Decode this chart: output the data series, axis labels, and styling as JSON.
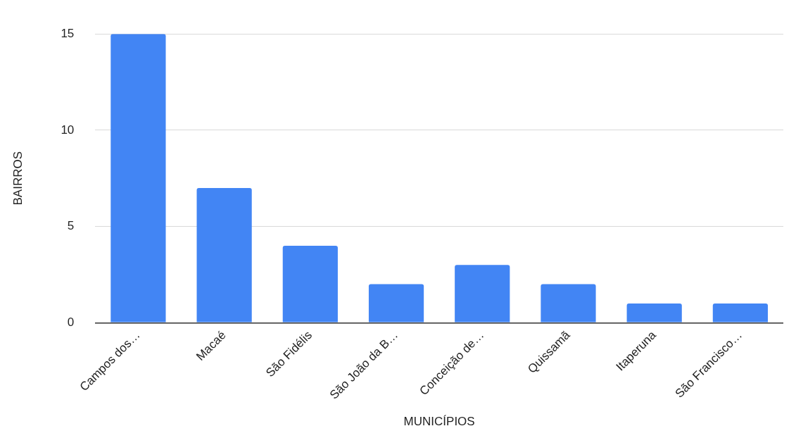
{
  "chart_data": {
    "type": "bar",
    "xlabel": "MUNICÍPIOS",
    "ylabel": "BAIRROS",
    "categories": [
      "Campos dos…",
      "Macaé",
      "São Fidélis",
      "São João da B…",
      "Conceição de…",
      "Quissamã",
      "Itaperuna",
      "São Francisco…"
    ],
    "values": [
      15,
      7,
      4,
      2,
      3,
      2,
      1,
      1
    ],
    "color": "#4285f4",
    "ylim": [
      0,
      15
    ],
    "yticks": [
      0,
      5,
      10,
      15
    ],
    "grid": "y",
    "legend": false
  }
}
